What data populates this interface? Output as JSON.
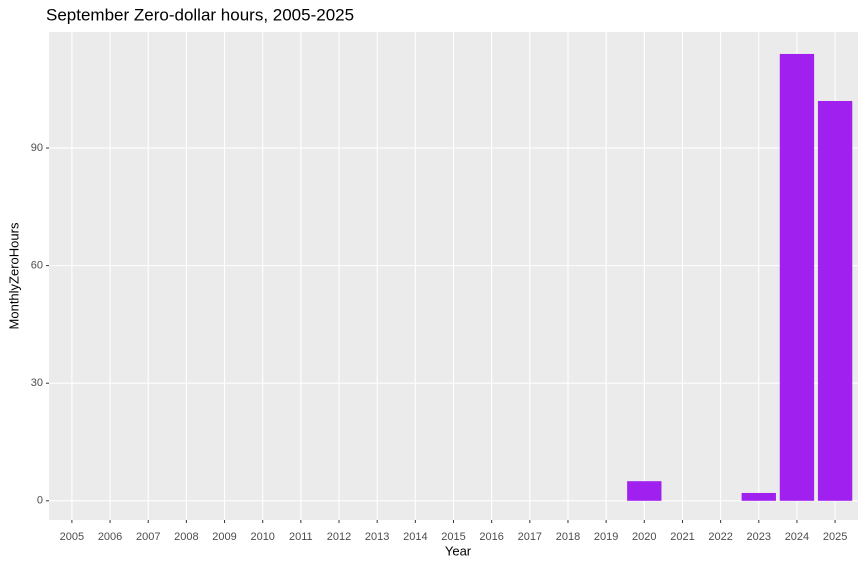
{
  "chart_data": {
    "type": "bar",
    "title": "September Zero-dollar hours, 2005-2025",
    "x_label": "Year",
    "y_label": "MonthlyZeroHours",
    "categories": [
      "2005",
      "2006",
      "2007",
      "2008",
      "2009",
      "2010",
      "2011",
      "2012",
      "2013",
      "2014",
      "2015",
      "2016",
      "2017",
      "2018",
      "2019",
      "2020",
      "2021",
      "2022",
      "2023",
      "2024",
      "2025"
    ],
    "values": [
      0,
      0,
      0,
      0,
      0,
      0,
      0,
      0,
      0,
      0,
      0,
      0,
      0,
      0,
      0,
      5,
      0,
      0,
      2,
      114,
      102
    ],
    "color": "#a020f0",
    "ylim": [
      -4.9,
      119.6
    ],
    "yticks": [
      0,
      30,
      60,
      90
    ],
    "grid": true
  }
}
